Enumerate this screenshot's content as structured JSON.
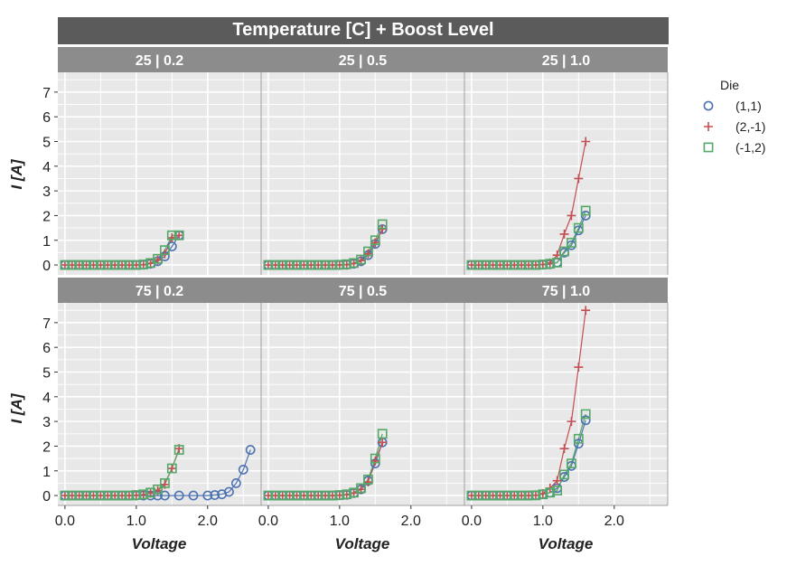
{
  "chart_data": {
    "type": "scatter",
    "title": "Temperature [C] + Boost Level",
    "xlabel": "Voltage",
    "ylabel": "I [A]",
    "xlim": [
      -0.1,
      2.75
    ],
    "ylim": [
      -0.4,
      7.8
    ],
    "x_ticks": [
      0.0,
      1.0,
      2.0
    ],
    "x_tick_labels": [
      "0.0",
      "1.0",
      "2.0"
    ],
    "y_ticks": [
      0,
      1,
      2,
      3,
      4,
      5,
      6,
      7
    ],
    "y_tick_labels": [
      "0",
      "1",
      "2",
      "3",
      "4",
      "5",
      "6",
      "7"
    ],
    "grid": true,
    "legend": {
      "title": "Die",
      "position": "right",
      "entries": [
        {
          "label": "(1,1)",
          "marker": "circle",
          "color": "#4c72b0"
        },
        {
          "label": "(2,-1)",
          "marker": "plus",
          "color": "#c44e52"
        },
        {
          "label": "(-1,2)",
          "marker": "square",
          "color": "#55a868"
        }
      ]
    },
    "panels": [
      {
        "label": "25 | 0.2",
        "series": [
          {
            "name": "(1,1)",
            "x": [
              0,
              0.1,
              0.2,
              0.3,
              0.4,
              0.5,
              0.6,
              0.7,
              0.8,
              0.9,
              1.0,
              1.1,
              1.2,
              1.3,
              1.4,
              1.5,
              1.6
            ],
            "y": [
              0,
              0,
              0,
              0,
              0,
              0,
              0,
              0,
              0,
              0,
              0,
              0.01,
              0.05,
              0.15,
              0.35,
              0.75,
              1.2
            ]
          },
          {
            "name": "(2,-1)",
            "x": [
              0,
              0.1,
              0.2,
              0.3,
              0.4,
              0.5,
              0.6,
              0.7,
              0.8,
              0.9,
              1.0,
              1.1,
              1.2,
              1.3,
              1.4,
              1.5,
              1.6
            ],
            "y": [
              0,
              0,
              0,
              0,
              0,
              0,
              0,
              0,
              0,
              0,
              0,
              0.01,
              0.07,
              0.2,
              0.45,
              1.1,
              1.2
            ]
          },
          {
            "name": "(-1,2)",
            "x": [
              0,
              0.1,
              0.2,
              0.3,
              0.4,
              0.5,
              0.6,
              0.7,
              0.8,
              0.9,
              1.0,
              1.1,
              1.2,
              1.3,
              1.4,
              1.5,
              1.6
            ],
            "y": [
              0,
              0,
              0,
              0,
              0,
              0,
              0,
              0,
              0,
              0,
              0,
              0.02,
              0.08,
              0.25,
              0.6,
              1.2,
              1.2
            ]
          }
        ]
      },
      {
        "label": "25 | 0.5",
        "series": [
          {
            "name": "(1,1)",
            "x": [
              0,
              0.1,
              0.2,
              0.3,
              0.4,
              0.5,
              0.6,
              0.7,
              0.8,
              0.9,
              1.0,
              1.1,
              1.2,
              1.3,
              1.4,
              1.5,
              1.6
            ],
            "y": [
              0,
              0,
              0,
              0,
              0,
              0,
              0,
              0,
              0,
              0,
              0,
              0.01,
              0.05,
              0.15,
              0.4,
              0.85,
              1.45
            ]
          },
          {
            "name": "(2,-1)",
            "x": [
              0,
              0.1,
              0.2,
              0.3,
              0.4,
              0.5,
              0.6,
              0.7,
              0.8,
              0.9,
              1.0,
              1.1,
              1.2,
              1.3,
              1.4,
              1.5,
              1.6
            ],
            "y": [
              0,
              0,
              0,
              0,
              0,
              0,
              0,
              0,
              0,
              0,
              0,
              0.01,
              0.06,
              0.18,
              0.45,
              0.9,
              1.45
            ]
          },
          {
            "name": "(-1,2)",
            "x": [
              0,
              0.1,
              0.2,
              0.3,
              0.4,
              0.5,
              0.6,
              0.7,
              0.8,
              0.9,
              1.0,
              1.1,
              1.2,
              1.3,
              1.4,
              1.5,
              1.6
            ],
            "y": [
              0,
              0,
              0,
              0,
              0,
              0,
              0,
              0,
              0,
              0,
              0.01,
              0.03,
              0.08,
              0.22,
              0.55,
              1.0,
              1.65
            ]
          }
        ]
      },
      {
        "label": "25 | 1.0",
        "series": [
          {
            "name": "(1,1)",
            "x": [
              0,
              0.1,
              0.2,
              0.3,
              0.4,
              0.5,
              0.6,
              0.7,
              0.8,
              0.9,
              1.0,
              1.1,
              1.2,
              1.3,
              1.4,
              1.5,
              1.6
            ],
            "y": [
              0,
              0,
              0,
              0,
              0,
              0,
              0,
              0,
              0,
              0,
              0.01,
              0.03,
              0.1,
              0.5,
              0.8,
              1.4,
              2.0
            ]
          },
          {
            "name": "(2,-1)",
            "x": [
              0,
              0.1,
              0.2,
              0.3,
              0.4,
              0.5,
              0.6,
              0.7,
              0.8,
              0.9,
              1.0,
              1.1,
              1.2,
              1.3,
              1.4,
              1.5,
              1.6
            ],
            "y": [
              0,
              0,
              0,
              0,
              0,
              0,
              0,
              0,
              0,
              0,
              0.02,
              0.08,
              0.4,
              1.25,
              2.0,
              3.5,
              5.0
            ]
          },
          {
            "name": "(-1,2)",
            "x": [
              0,
              0.1,
              0.2,
              0.3,
              0.4,
              0.5,
              0.6,
              0.7,
              0.8,
              0.9,
              1.0,
              1.1,
              1.2,
              1.3,
              1.4,
              1.5,
              1.6
            ],
            "y": [
              0,
              0,
              0,
              0,
              0,
              0,
              0,
              0,
              0,
              0,
              0.02,
              0.05,
              0.1,
              0.55,
              0.9,
              1.5,
              2.2
            ]
          }
        ]
      },
      {
        "label": "75 | 0.2",
        "series": [
          {
            "name": "(1,1)",
            "x": [
              0,
              0.1,
              0.2,
              0.3,
              0.4,
              0.5,
              0.6,
              0.7,
              0.8,
              0.9,
              1.0,
              1.1,
              1.2,
              1.3,
              1.4,
              1.6,
              1.8,
              2.0,
              2.1,
              2.2,
              2.3,
              2.4,
              2.5,
              2.6
            ],
            "y": [
              0,
              0,
              0,
              0,
              0,
              0,
              0,
              0,
              0,
              0,
              0,
              0,
              0,
              0,
              0,
              0,
              0,
              0,
              0.02,
              0.05,
              0.15,
              0.5,
              1.05,
              1.85
            ]
          },
          {
            "name": "(2,-1)",
            "x": [
              0,
              0.1,
              0.2,
              0.3,
              0.4,
              0.5,
              0.6,
              0.7,
              0.8,
              0.9,
              1.0,
              1.1,
              1.2,
              1.3,
              1.4,
              1.5,
              1.6
            ],
            "y": [
              0,
              0,
              0,
              0,
              0,
              0,
              0,
              0,
              0,
              0,
              0.01,
              0.03,
              0.1,
              0.2,
              0.45,
              1.1,
              1.9
            ]
          },
          {
            "name": "(-1,2)",
            "x": [
              0,
              0.1,
              0.2,
              0.3,
              0.4,
              0.5,
              0.6,
              0.7,
              0.8,
              0.9,
              1.0,
              1.1,
              1.2,
              1.3,
              1.4,
              1.5,
              1.6
            ],
            "y": [
              0,
              0,
              0,
              0,
              0,
              0,
              0,
              0,
              0,
              0,
              0.02,
              0.05,
              0.12,
              0.25,
              0.5,
              1.1,
              1.85
            ]
          }
        ]
      },
      {
        "label": "75 | 0.5",
        "series": [
          {
            "name": "(1,1)",
            "x": [
              0,
              0.1,
              0.2,
              0.3,
              0.4,
              0.5,
              0.6,
              0.7,
              0.8,
              0.9,
              1.0,
              1.1,
              1.2,
              1.3,
              1.4,
              1.5,
              1.6
            ],
            "y": [
              0,
              0,
              0,
              0,
              0,
              0,
              0,
              0,
              0,
              0,
              0.01,
              0.03,
              0.1,
              0.25,
              0.6,
              1.3,
              2.15
            ]
          },
          {
            "name": "(2,-1)",
            "x": [
              0,
              0.1,
              0.2,
              0.3,
              0.4,
              0.5,
              0.6,
              0.7,
              0.8,
              0.9,
              1.0,
              1.1,
              1.2,
              1.3,
              1.4,
              1.5,
              1.6
            ],
            "y": [
              0,
              0,
              0,
              0,
              0,
              0,
              0,
              0,
              0,
              0,
              0.01,
              0.03,
              0.1,
              0.25,
              0.55,
              1.4,
              2.15
            ]
          },
          {
            "name": "(-1,2)",
            "x": [
              0,
              0.1,
              0.2,
              0.3,
              0.4,
              0.5,
              0.6,
              0.7,
              0.8,
              0.9,
              1.0,
              1.1,
              1.2,
              1.3,
              1.4,
              1.5,
              1.6
            ],
            "y": [
              0,
              0,
              0,
              0,
              0,
              0,
              0,
              0,
              0,
              0,
              0.02,
              0.05,
              0.12,
              0.3,
              0.65,
              1.5,
              2.5
            ]
          }
        ]
      },
      {
        "label": "75 | 1.0",
        "series": [
          {
            "name": "(1,1)",
            "x": [
              0,
              0.1,
              0.2,
              0.3,
              0.4,
              0.5,
              0.6,
              0.7,
              0.8,
              0.9,
              1.0,
              1.1,
              1.2,
              1.3,
              1.4,
              1.5,
              1.6
            ],
            "y": [
              0,
              0,
              0,
              0,
              0,
              0,
              0,
              0,
              0,
              0.01,
              0.05,
              0.12,
              0.3,
              0.75,
              1.2,
              2.1,
              3.05
            ]
          },
          {
            "name": "(2,-1)",
            "x": [
              0,
              0.1,
              0.2,
              0.3,
              0.4,
              0.5,
              0.6,
              0.7,
              0.8,
              0.9,
              1.0,
              1.1,
              1.2,
              1.3,
              1.4,
              1.5,
              1.6
            ],
            "y": [
              0,
              0,
              0,
              0,
              0,
              0,
              0,
              0,
              0,
              0.01,
              0.08,
              0.3,
              0.6,
              1.9,
              3.0,
              5.2,
              7.5
            ]
          },
          {
            "name": "(-1,2)",
            "x": [
              0,
              0.1,
              0.2,
              0.3,
              0.4,
              0.5,
              0.6,
              0.7,
              0.8,
              0.9,
              1.0,
              1.1,
              1.2,
              1.3,
              1.4,
              1.5,
              1.6
            ],
            "y": [
              0,
              0,
              0,
              0,
              0,
              0,
              0,
              0,
              0,
              0.01,
              0.05,
              0.12,
              0.2,
              0.85,
              1.3,
              2.3,
              3.3
            ]
          }
        ]
      }
    ]
  }
}
